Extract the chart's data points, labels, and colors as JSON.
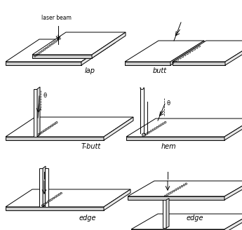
{
  "background_color": "#ffffff",
  "line_color": "#000000",
  "lw": 0.7,
  "figsize": [
    3.45,
    3.28
  ],
  "dpi": 100,
  "labels": {
    "laser_beam": "laser beam",
    "lap": "lap",
    "butt": "butt",
    "tbutt": "T-butt",
    "hem": "hem",
    "edge1": "edge",
    "edge2": "edge"
  },
  "theta": "θ"
}
